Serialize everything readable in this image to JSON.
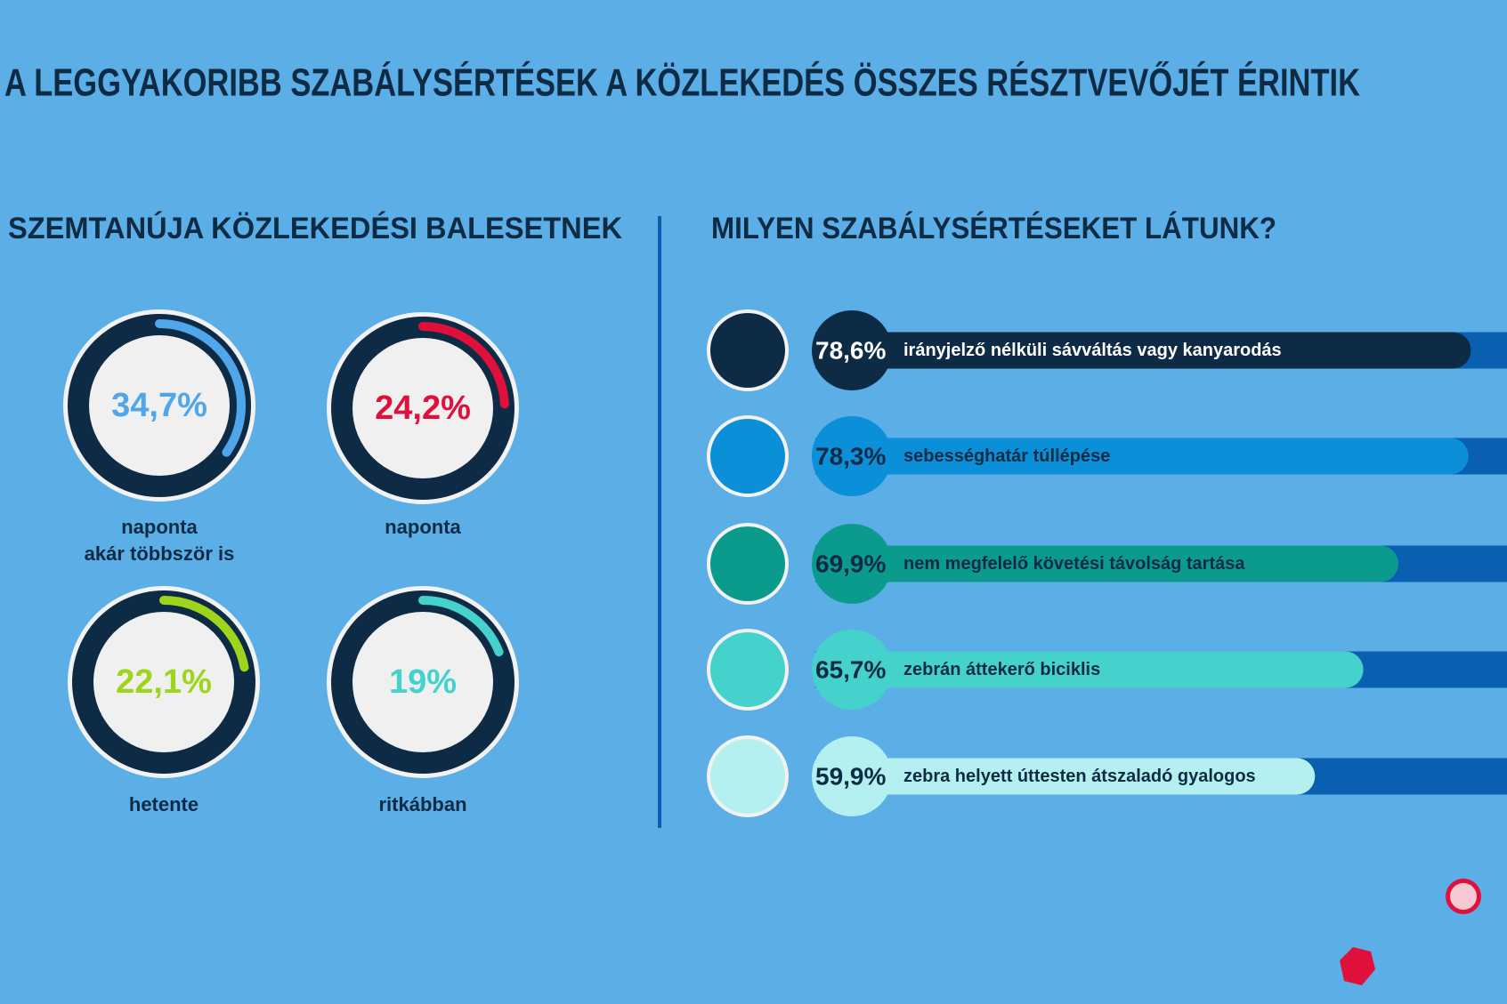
{
  "title": "A LEGGYAKORIBB SZABÁLYSÉRTÉSEK A KÖZLEKEDÉS ÖSSZES RÉSZTVEVŐJÉT ÉRINTIK",
  "chart_data": [
    {
      "type": "gauge",
      "title": "SZEMTANÚJA KÖZLEKEDÉSI BALESETNEK",
      "categories": [
        "naponta\nakár többször is",
        "naponta",
        "hetente",
        "ritkábban"
      ],
      "values": [
        34.7,
        24.2,
        22.1,
        19
      ],
      "value_labels": [
        "34,7%",
        "24,2%",
        "22,1%",
        "19%"
      ],
      "colors": [
        "#4fa6ea",
        "#e0103c",
        "#9ed41b",
        "#45d2cc"
      ],
      "ylim": [
        0,
        100
      ]
    },
    {
      "type": "hbar",
      "title": "MILYEN SZABÁLYSÉRTÉSEKET LÁTUNK?",
      "categories": [
        "irányjelző nélküli sávváltás vagy kanyarodás",
        "sebességhatár túllépése",
        "nem megfelelő követési távolság tartása",
        "zebrán áttekerő biciklis",
        "zebra helyett úttesten átszaladó gyalogos"
      ],
      "values": [
        78.6,
        78.3,
        69.9,
        65.7,
        59.9
      ],
      "value_labels": [
        "78,6%",
        "78,3%",
        "69,9%",
        "65,7%",
        "59,9%"
      ],
      "colors": [
        "#0d2b45",
        "#0a8fd8",
        "#0b9b8c",
        "#45d2cc",
        "#b5f0f0"
      ],
      "ylim": [
        0,
        100
      ]
    }
  ]
}
